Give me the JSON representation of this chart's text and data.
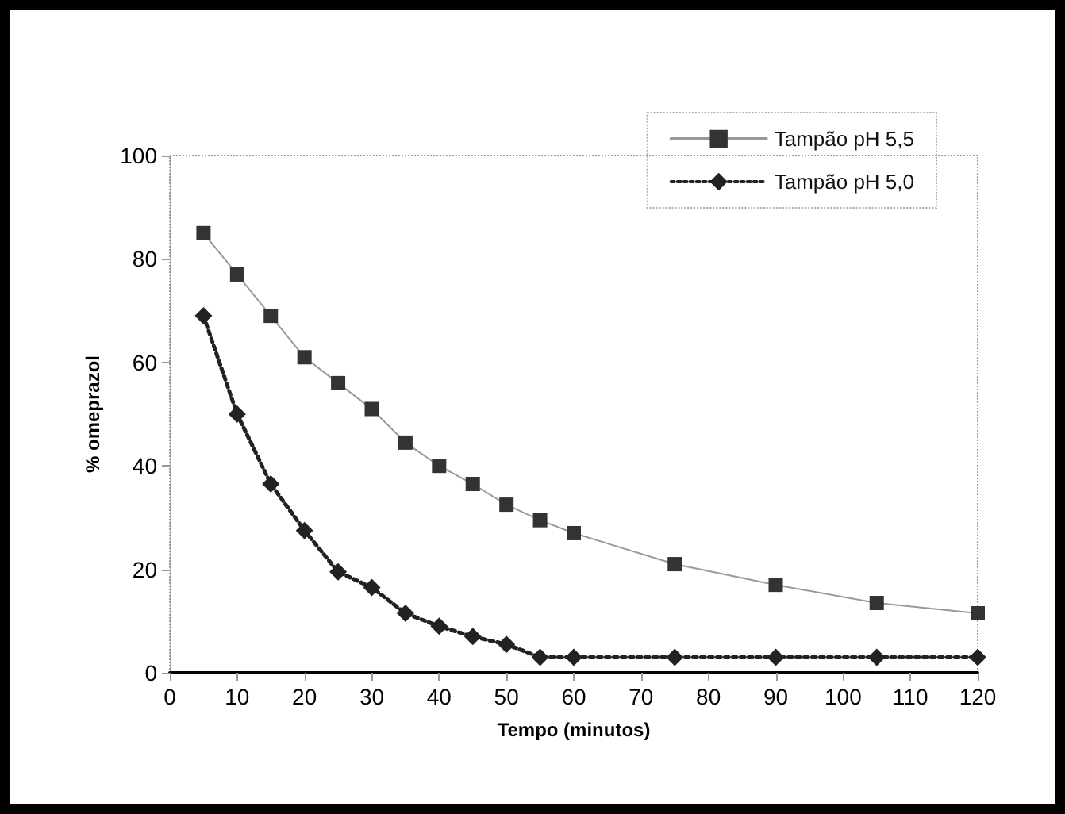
{
  "chart_data": {
    "type": "line",
    "xlabel": "Tempo (minutos)",
    "ylabel": "% omeprazol",
    "x": [
      5,
      10,
      15,
      20,
      25,
      30,
      35,
      40,
      45,
      50,
      55,
      60,
      75,
      90,
      105,
      120
    ],
    "series": [
      {
        "name": "Tampão pH 5,5",
        "color": "#333333",
        "marker": "square",
        "line_style": "solid",
        "values": [
          85,
          77,
          69,
          61,
          56,
          51,
          44.5,
          40,
          36.5,
          32.5,
          29.5,
          27,
          21,
          17,
          13.5,
          11.5
        ]
      },
      {
        "name": "Tampão pH 5,0",
        "color": "#222222",
        "marker": "diamond",
        "line_style": "dotted",
        "values": [
          69,
          50,
          36.5,
          27.5,
          19.5,
          16.5,
          11.5,
          9,
          7,
          5.5,
          3,
          3,
          3,
          3,
          3,
          3
        ]
      }
    ],
    "xlim": [
      0,
      120
    ],
    "xticks": [
      0,
      10,
      20,
      30,
      40,
      50,
      60,
      70,
      80,
      90,
      100,
      110,
      120
    ],
    "ylim": [
      0,
      100
    ],
    "yticks": [
      0,
      20,
      40,
      60,
      80,
      100
    ],
    "grid": false,
    "legend": "top right"
  }
}
